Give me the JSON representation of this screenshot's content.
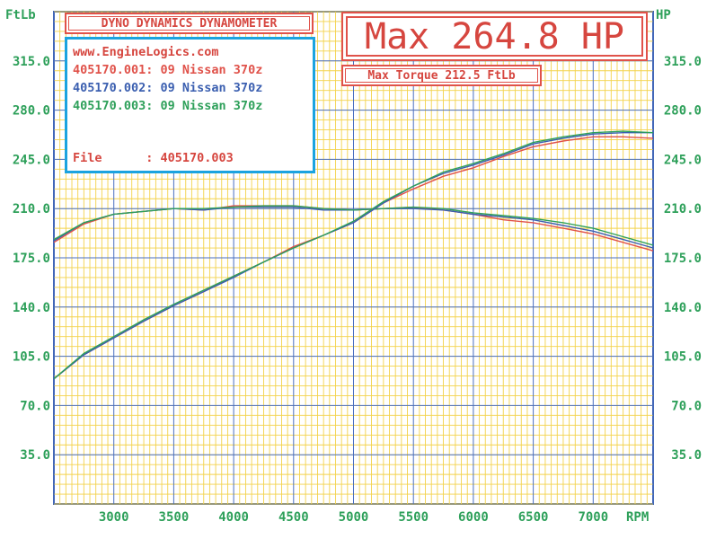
{
  "header": {
    "title": "DYNO DYNAMICS DYNAMOMETER",
    "website": "www.EngineLogics.com",
    "runs": [
      {
        "label": "405170.001: 09 Nissan 370z",
        "color": "#e0524a"
      },
      {
        "label": "405170.002: 09 Nissan 370z",
        "color": "#3b5fb0"
      },
      {
        "label": "405170.003: 09 Nissan 370z",
        "color": "#2ea05a"
      }
    ],
    "file_label": "File      : 405170.003",
    "max_hp": "Max 264.8 HP",
    "max_torque": "Max Torque 212.5 FtLb"
  },
  "chart_data": {
    "type": "line",
    "xlabel": "RPM",
    "ylabel_left": "FtLb",
    "ylabel_right": "HP",
    "xlim": [
      2500,
      7500
    ],
    "ylim": [
      0,
      350
    ],
    "x_ticks": [
      3000,
      3500,
      4000,
      4500,
      5000,
      5500,
      6000,
      6500,
      7000
    ],
    "y_ticks": [
      35.0,
      70.0,
      105.0,
      140.0,
      175.0,
      210.0,
      245.0,
      280.0,
      315.0
    ],
    "grid": true,
    "x": [
      2500,
      2750,
      3000,
      3250,
      3500,
      3750,
      4000,
      4250,
      4500,
      4750,
      5000,
      5250,
      5500,
      5750,
      6000,
      6250,
      6500,
      6750,
      7000,
      7250,
      7500
    ],
    "series": [
      {
        "name": "405170.001: 09 Nissan 370z",
        "measure": "torque",
        "color": "#e0524a",
        "values": [
          186,
          199,
          206,
          208,
          210,
          209,
          212,
          212,
          212,
          210,
          209,
          210,
          211,
          209,
          206,
          202,
          200,
          196,
          192,
          186,
          180
        ]
      },
      {
        "name": "405170.002: 09 Nissan 370z",
        "measure": "torque",
        "color": "#3b5fb0",
        "values": [
          187,
          200,
          206,
          208,
          210,
          209,
          211,
          211,
          211,
          209,
          209,
          210,
          210,
          209,
          206,
          204,
          202,
          198,
          194,
          188,
          182
        ]
      },
      {
        "name": "405170.003: 09 Nissan 370z",
        "measure": "torque",
        "color": "#2ea05a",
        "values": [
          188,
          200,
          206,
          208,
          210,
          210,
          211,
          212,
          212,
          210,
          209,
          210,
          211,
          210,
          207,
          205,
          203,
          200,
          196,
          190,
          184
        ]
      },
      {
        "name": "405170.001: 09 Nissan 370z",
        "measure": "hp",
        "color": "#e0524a",
        "values": [
          89,
          106,
          118,
          130,
          141,
          151,
          162,
          172,
          183,
          191,
          200,
          214,
          224,
          233,
          239,
          247,
          254,
          258,
          261,
          261,
          260
        ]
      },
      {
        "name": "405170.002: 09 Nissan 370z",
        "measure": "hp",
        "color": "#3b5fb0",
        "values": [
          89,
          106,
          118,
          130,
          141,
          151,
          161,
          172,
          182,
          191,
          200,
          214,
          226,
          235,
          241,
          248,
          256,
          260,
          263,
          264,
          264
        ]
      },
      {
        "name": "405170.003: 09 Nissan 370z",
        "measure": "hp",
        "color": "#2ea05a",
        "values": [
          89,
          107,
          119,
          131,
          142,
          152,
          162,
          172,
          182,
          191,
          201,
          215,
          226,
          236,
          242,
          249,
          257,
          261,
          264,
          265,
          264
        ]
      }
    ]
  }
}
